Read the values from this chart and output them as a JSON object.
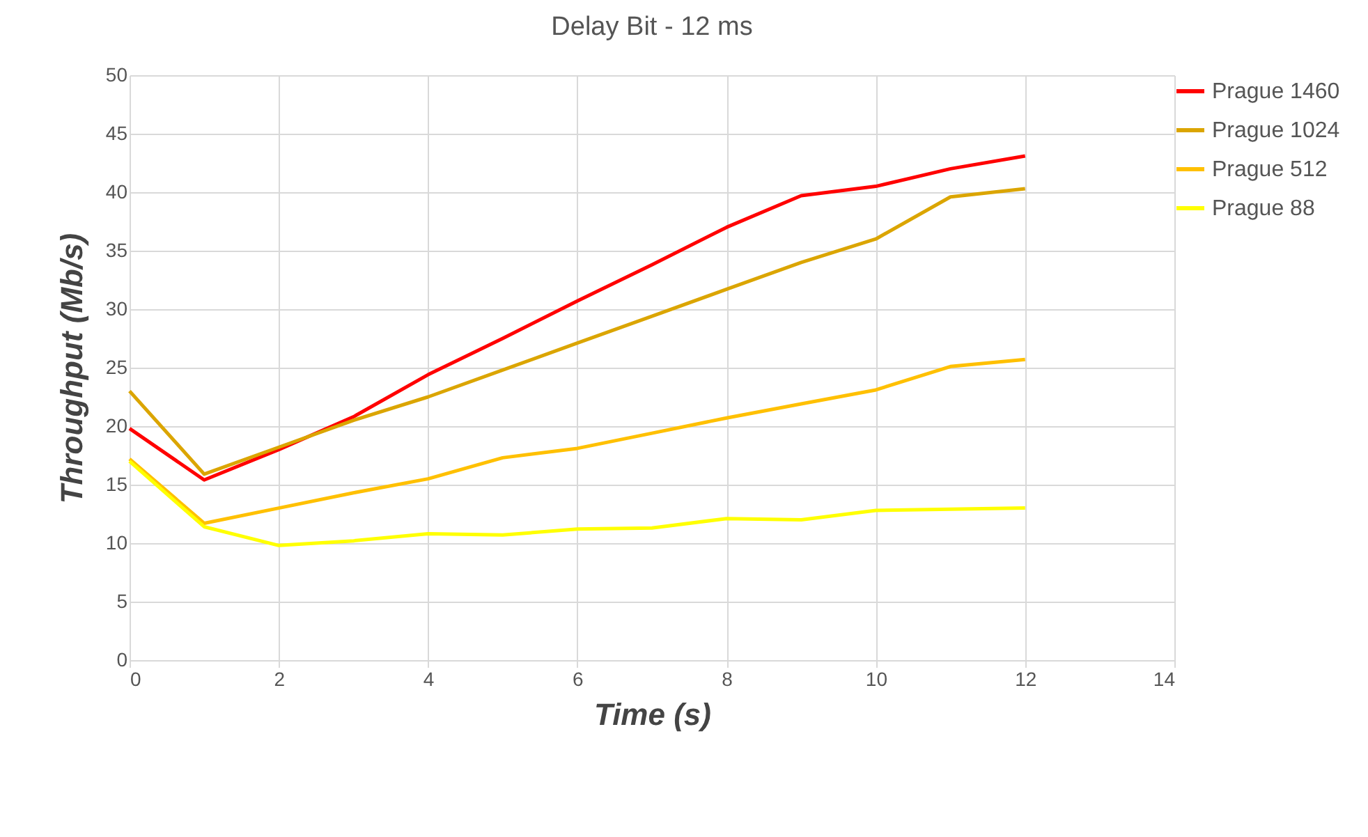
{
  "chart_data": {
    "type": "line",
    "title": "Delay Bit - 12 ms",
    "xlabel": "Time (s)",
    "ylabel": "Throughput (Mb/s)",
    "x": [
      0,
      1,
      2,
      3,
      4,
      5,
      6,
      7,
      8,
      9,
      10,
      11,
      12
    ],
    "series": [
      {
        "name": "Prague 1460",
        "color": "#ff0000",
        "values": [
          19.8,
          15.4,
          18.0,
          20.8,
          24.4,
          27.5,
          30.7,
          33.8,
          37.0,
          39.7,
          40.5,
          42.0,
          43.1
        ]
      },
      {
        "name": "Prague 1024",
        "color": "#dba500",
        "values": [
          23.0,
          15.9,
          18.2,
          20.5,
          22.5,
          24.8,
          27.1,
          29.4,
          31.7,
          34.0,
          36.0,
          39.6,
          40.3
        ]
      },
      {
        "name": "Prague 512",
        "color": "#ffc000",
        "values": [
          17.2,
          11.7,
          13.0,
          14.3,
          15.5,
          17.3,
          18.1,
          19.4,
          20.7,
          21.9,
          23.1,
          25.1,
          25.7
        ]
      },
      {
        "name": "Prague 88",
        "color": "#ffff00",
        "values": [
          17.0,
          11.4,
          9.8,
          10.2,
          10.8,
          10.7,
          11.2,
          11.3,
          12.1,
          12.0,
          12.8,
          12.9,
          13.0
        ]
      }
    ],
    "xlim": [
      0,
      14
    ],
    "xticks": [
      0,
      2,
      4,
      6,
      8,
      10,
      12,
      14
    ],
    "ylim": [
      0,
      50
    ],
    "yticks": [
      0,
      5,
      10,
      15,
      20,
      25,
      30,
      35,
      40,
      45,
      50
    ],
    "grid": true,
    "legend": "right",
    "marker": "none",
    "line_style": "solid"
  }
}
